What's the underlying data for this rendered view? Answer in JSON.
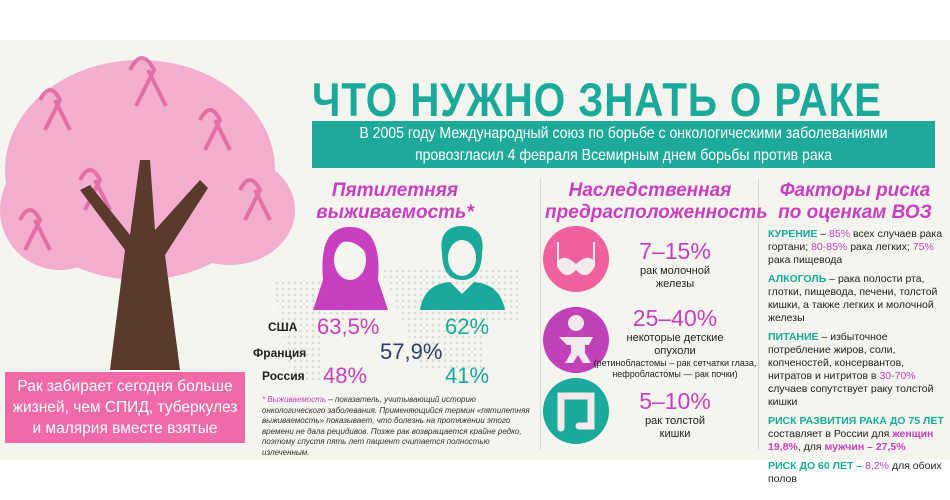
{
  "title": "ЧТО НУЖНО ЗНАТЬ О РАКЕ",
  "banner": [
    "В 2005 году Международный союз по борьбе с онкологическими заболеваниями",
    "провозгласил 4 февраля Всемирным днем борьбы против рака"
  ],
  "tree_box": [
    "Рак забирает сегодня больше",
    "жизней, чем СПИД, туберкулез",
    "и малярия вместе взятые"
  ],
  "survival": {
    "heading": [
      "Пятилетняя",
      "выживаемость*"
    ],
    "countries": [
      "США",
      "Франция",
      "Россия"
    ],
    "usa_women": "63,5%",
    "usa_men": "62%",
    "france": "57,9%",
    "russia_women": "48%",
    "russia_men": "41%",
    "footnote_term": "* Выживаемость",
    "footnote": " – показатель, учитывающий историю онкологического заболевания. Применяющийся термин «пятилетняя выживаемость» показывает, что болезнь на протяжении этого времени не дала рецидивов. Позже рак возвращается крайне редко, поэтому спустя пять лет пациент считается полностью излеченным."
  },
  "heredity": {
    "heading": [
      "Наследственная",
      "предрасположенность"
    ],
    "items": [
      {
        "pct": "7–15%",
        "cap": [
          "рак молочной",
          "железы"
        ],
        "icon": "bra-icon",
        "color": "#f0609e"
      },
      {
        "pct": "25–40%",
        "cap": [
          "некоторые детские",
          "опухоли"
        ],
        "note": [
          "(ретинобластомы – рак сетчатки глаза,",
          "нефробластомы —  рак почки)"
        ],
        "icon": "baby-icon",
        "color": "#c142b8"
      },
      {
        "pct": "5–10%",
        "cap": [
          "рак толстой",
          "кишки"
        ],
        "icon": "intestine-icon",
        "color": "#1aa99a"
      }
    ]
  },
  "risk": {
    "heading": [
      "Факторы риска",
      "по оценкам ВОЗ"
    ],
    "smoking": {
      "k": "КУРЕНИЕ",
      "a": " – ",
      "p1": "85%",
      "t1": " всех случаев рака гортани; ",
      "p2": "80-85%",
      "t2": " рака легких; ",
      "p3": "75%",
      "t3": " рака пищевода"
    },
    "alcohol": {
      "k": "АЛКОГОЛЬ",
      "t": " – рака полости рта, глотки, пищевода, печени, толстой кишки, а также легких и молочной железы"
    },
    "food": {
      "k": "ПИТАНИЕ",
      "t1": " – избыточное потребление жиров, соли, копченостей, консервантов, нитратов и нитритов в ",
      "p": "30-70%",
      "t2": " случаев сопутствует раку толстой кишки"
    },
    "r75": {
      "k": "РИСК РАЗВИТИЯ РАКА ДО 75 ЛЕТ",
      "t1": " составляет в России для ",
      "w": "женщин 19,8%",
      "t2": ", для ",
      "m": "мужчин – 27,5%"
    },
    "r60": {
      "k": "РИСК ДО 60 ЛЕТ –",
      "p": " 8,2%",
      "t": " для обоих полов"
    }
  },
  "colors": {
    "teal": "#1aa99a",
    "magenta": "#c83fbf",
    "pink": "#f06aa8",
    "navy": "#2c3e6d",
    "trunk": "#5a3a2c"
  }
}
